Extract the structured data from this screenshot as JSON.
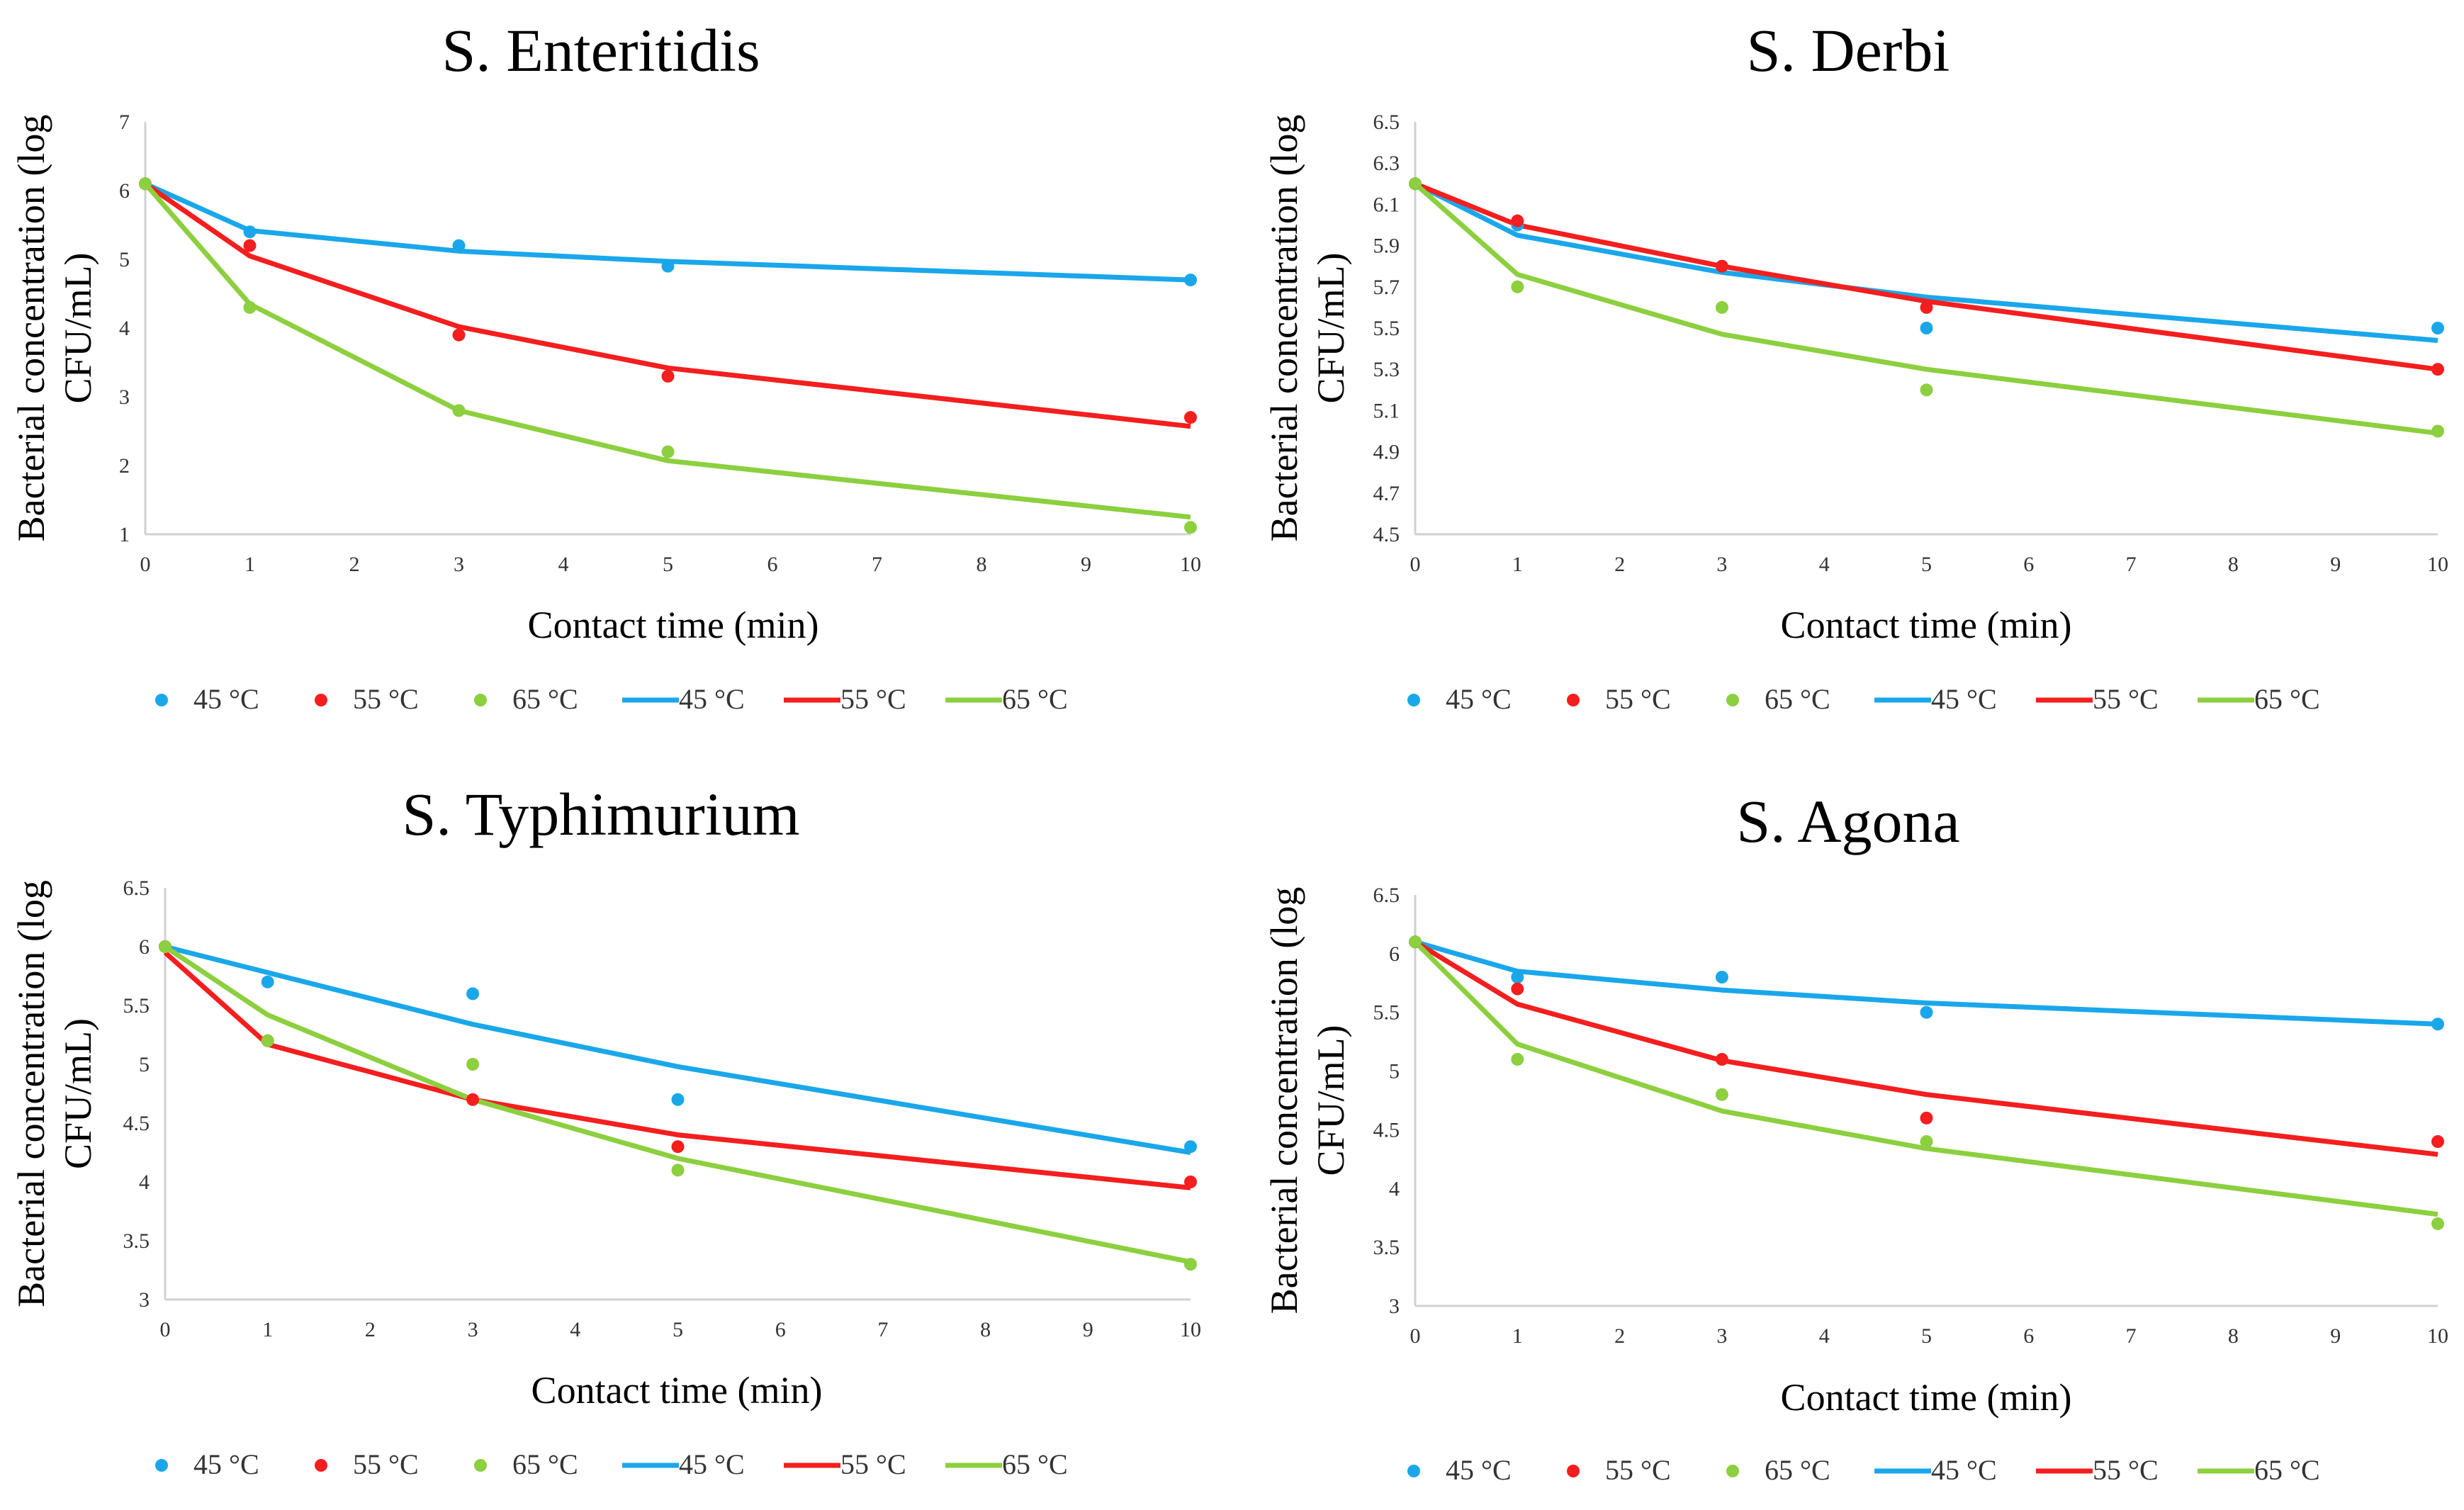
{
  "chart_data": [
    {
      "type": "line",
      "title": "S. Enteritidis",
      "xlabel": "Contact time (min)",
      "ylabel_line1": "Bacterial concentration (log",
      "ylabel_line2": "CFU/mL)",
      "xlim": [
        0,
        10
      ],
      "ylim": [
        1,
        7
      ],
      "yticks": [
        "1",
        "2",
        "3",
        "4",
        "5",
        "6",
        "7"
      ],
      "xticks": [
        "0",
        "1",
        "2",
        "3",
        "4",
        "5",
        "6",
        "7",
        "8",
        "9",
        "10"
      ],
      "x": [
        0,
        1,
        3,
        5,
        10
      ],
      "series": [
        {
          "name": "45 °C",
          "color": "#1aa7ea",
          "points": [
            6.1,
            5.4,
            5.2,
            4.9,
            4.7
          ],
          "fit": [
            6.1,
            5.42,
            5.12,
            4.97,
            4.7
          ]
        },
        {
          "name": "55 °C",
          "color": "#f41e1e",
          "points": [
            6.1,
            5.2,
            3.9,
            3.3,
            2.7
          ],
          "fit": [
            6.1,
            5.05,
            4.02,
            3.42,
            2.57
          ]
        },
        {
          "name": "65 °C",
          "color": "#8ccf3f",
          "points": [
            6.1,
            4.3,
            2.8,
            2.2,
            1.1
          ],
          "fit": [
            6.1,
            4.35,
            2.8,
            2.07,
            1.25
          ]
        }
      ]
    },
    {
      "type": "line",
      "title": "S. Derbi",
      "xlabel": "Contact time (min)",
      "ylabel_line1": "Bacterial concentration (log",
      "ylabel_line2": "CFU/mL)",
      "xlim": [
        0,
        10
      ],
      "ylim": [
        4.5,
        6.5
      ],
      "yticks": [
        "4.5",
        "4.7",
        "4.9",
        "5.1",
        "5.3",
        "5.5",
        "5.7",
        "5.9",
        "6.1",
        "6.3",
        "6.5"
      ],
      "xticks": [
        "0",
        "1",
        "2",
        "3",
        "4",
        "5",
        "6",
        "7",
        "8",
        "9",
        "10"
      ],
      "x": [
        0,
        1,
        3,
        5,
        10
      ],
      "series": [
        {
          "name": "45 °C",
          "color": "#1aa7ea",
          "points": [
            6.2,
            6.0,
            5.8,
            5.5,
            5.5
          ],
          "fit": [
            6.2,
            5.95,
            5.77,
            5.65,
            5.44
          ]
        },
        {
          "name": "55 °C",
          "color": "#f41e1e",
          "points": [
            6.2,
            6.02,
            5.8,
            5.6,
            5.3
          ],
          "fit": [
            6.2,
            6.0,
            5.8,
            5.63,
            5.3
          ]
        },
        {
          "name": "65 °C",
          "color": "#8ccf3f",
          "points": [
            6.2,
            5.7,
            5.6,
            5.2,
            5.0
          ],
          "fit": [
            6.2,
            5.76,
            5.47,
            5.3,
            4.99
          ]
        }
      ]
    },
    {
      "type": "line",
      "title": "S. Typhimurium",
      "xlabel": "Contact time (min)",
      "ylabel_line1": "Bacterial concentration (log",
      "ylabel_line2": "CFU/mL)",
      "xlim": [
        0,
        10
      ],
      "ylim": [
        3,
        6.5
      ],
      "yticks": [
        "3",
        "3.5",
        "4",
        "4.5",
        "5",
        "5.5",
        "6",
        "6.5"
      ],
      "xticks": [
        "0",
        "1",
        "2",
        "3",
        "4",
        "5",
        "6",
        "7",
        "8",
        "9",
        "10"
      ],
      "x": [
        0,
        1,
        3,
        5,
        10
      ],
      "series": [
        {
          "name": "45 °C",
          "color": "#1aa7ea",
          "points": [
            6.0,
            5.7,
            5.6,
            4.7,
            4.3
          ],
          "fit": [
            6.0,
            5.78,
            5.34,
            4.98,
            4.25
          ]
        },
        {
          "name": "55 °C",
          "color": "#f41e1e",
          "points": [
            6.0,
            5.2,
            4.7,
            4.3,
            4.0
          ],
          "fit": [
            5.95,
            5.17,
            4.7,
            4.4,
            3.95
          ]
        },
        {
          "name": "65 °C",
          "color": "#8ccf3f",
          "points": [
            6.0,
            5.2,
            5.0,
            4.1,
            3.3
          ],
          "fit": [
            6.0,
            5.42,
            4.7,
            4.2,
            3.32
          ]
        }
      ]
    },
    {
      "type": "line",
      "title": "S. Agona",
      "xlabel": "Contact time (min)",
      "ylabel_line1": "Bacterial concentration (log",
      "ylabel_line2": "CFU/mL)",
      "xlim": [
        0,
        10
      ],
      "ylim": [
        3,
        6.5
      ],
      "yticks": [
        "3",
        "3.5",
        "4",
        "4.5",
        "5",
        "5.5",
        "6",
        "6.5"
      ],
      "xticks": [
        "0",
        "1",
        "2",
        "3",
        "4",
        "5",
        "6",
        "7",
        "8",
        "9",
        "10"
      ],
      "x": [
        0,
        1,
        3,
        5,
        10
      ],
      "series": [
        {
          "name": "45 °C",
          "color": "#1aa7ea",
          "points": [
            6.1,
            5.8,
            5.8,
            5.5,
            5.4
          ],
          "fit": [
            6.1,
            5.85,
            5.69,
            5.58,
            5.4
          ]
        },
        {
          "name": "55 °C",
          "color": "#f41e1e",
          "points": [
            6.1,
            5.7,
            5.1,
            4.6,
            4.4
          ],
          "fit": [
            6.1,
            5.57,
            5.09,
            4.8,
            4.29
          ]
        },
        {
          "name": "65 °C",
          "color": "#8ccf3f",
          "points": [
            6.1,
            5.1,
            4.8,
            4.4,
            3.7
          ],
          "fit": [
            6.1,
            5.23,
            4.66,
            4.34,
            3.78
          ]
        }
      ]
    }
  ]
}
